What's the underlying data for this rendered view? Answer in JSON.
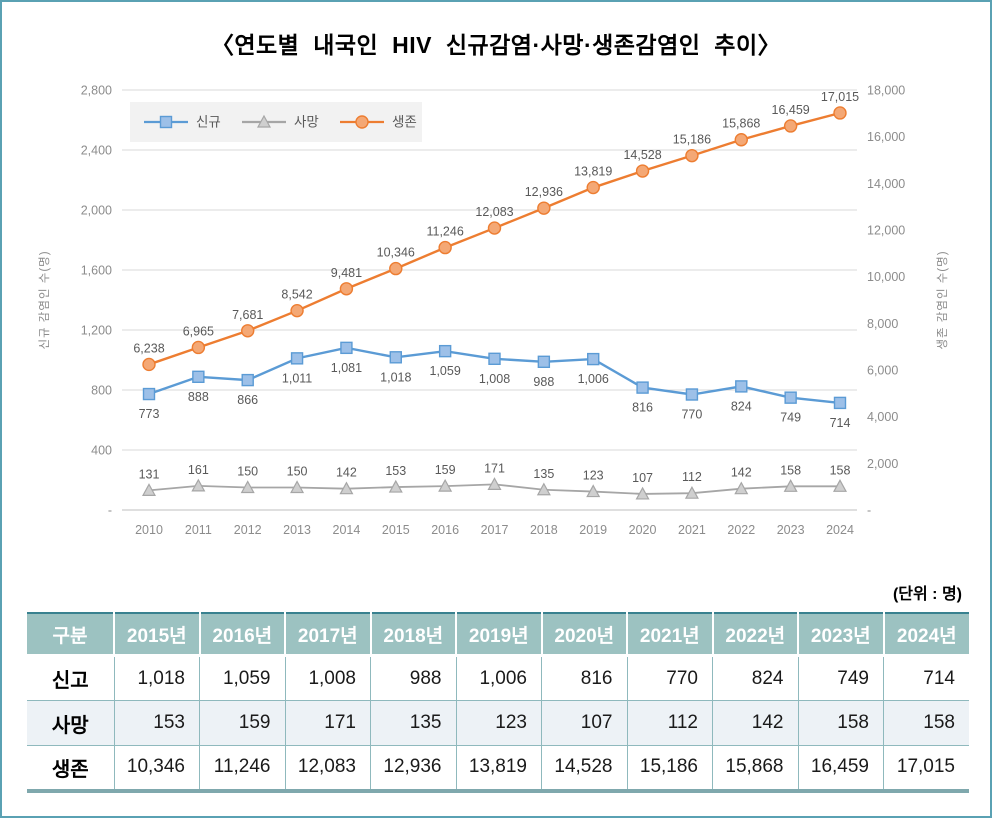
{
  "page_title": "〈연도별 내국인 HIV 신규감염·사망·생존감염인 추이〉",
  "unit_label": "(단위 : 명)",
  "colors": {
    "page_border": "#5aa1b3",
    "series_new": "#5b9bd5",
    "series_death": "#a6a6a6",
    "series_survivor": "#ed7d31",
    "table_header_bg": "#9cc2c1",
    "table_border": "#8fb9bd",
    "table_bottom_border": "#7fa8ad",
    "row_alt_bg": "#edf2f6"
  },
  "chart_data": {
    "type": "line",
    "title": "연도별 내국인 HIV 신규감염·사망·생존감염인 추이",
    "grid": true,
    "legend_position": "top-left",
    "categories": [
      "2010",
      "2011",
      "2012",
      "2013",
      "2014",
      "2015",
      "2016",
      "2017",
      "2018",
      "2019",
      "2020",
      "2021",
      "2022",
      "2023",
      "2024"
    ],
    "series": [
      {
        "key": "new-infections",
        "name": "신규",
        "axis": "left",
        "marker": "square",
        "color": "#5b9bd5",
        "marker_fill": "#9dc0e8",
        "label_position": "below",
        "values": [
          773,
          888,
          866,
          1011,
          1081,
          1018,
          1059,
          1008,
          988,
          1006,
          816,
          770,
          824,
          749,
          714
        ]
      },
      {
        "key": "deaths",
        "name": "사망",
        "axis": "left",
        "marker": "triangle",
        "color": "#a6a6a6",
        "marker_fill": "#cfcfcf",
        "label_position": "above",
        "values": [
          131,
          161,
          150,
          150,
          142,
          153,
          159,
          171,
          135,
          123,
          107,
          112,
          142,
          158,
          158
        ]
      },
      {
        "key": "survivors",
        "name": "생존",
        "axis": "right",
        "marker": "circle",
        "color": "#ed7d31",
        "marker_fill": "#f4a875",
        "label_position": "above",
        "values": [
          6238,
          6965,
          7681,
          8542,
          9481,
          10346,
          11246,
          12083,
          12936,
          13819,
          14528,
          15186,
          15868,
          16459,
          17015
        ]
      }
    ],
    "left_axis": {
      "title": "신규 감염인 수(명)",
      "min": 0,
      "max": 2800,
      "step": 400,
      "ticks": [
        "2,800",
        "2,400",
        "2,000",
        "1,600",
        "1,200",
        "800",
        "400",
        "-"
      ]
    },
    "right_axis": {
      "title": "생존 감염인 수(명)",
      "min": 0,
      "max": 18000,
      "step": 2000,
      "ticks": [
        "18,000",
        "16,000",
        "14,000",
        "12,000",
        "10,000",
        "8,000",
        "6,000",
        "4,000",
        "2,000",
        "-"
      ]
    }
  },
  "table": {
    "header": [
      "구분",
      "2015년",
      "2016년",
      "2017년",
      "2018년",
      "2019년",
      "2020년",
      "2021년",
      "2022년",
      "2023년",
      "2024년"
    ],
    "rows": [
      {
        "label": "신고",
        "values": [
          "1,018",
          "1,059",
          "1,008",
          "988",
          "1,006",
          "816",
          "770",
          "824",
          "749",
          "714"
        ]
      },
      {
        "label": "사망",
        "values": [
          "153",
          "159",
          "171",
          "135",
          "123",
          "107",
          "112",
          "142",
          "158",
          "158"
        ]
      },
      {
        "label": "생존",
        "values": [
          "10,346",
          "11,246",
          "12,083",
          "12,936",
          "13,819",
          "14,528",
          "15,186",
          "15,868",
          "16,459",
          "17,015"
        ]
      }
    ]
  }
}
